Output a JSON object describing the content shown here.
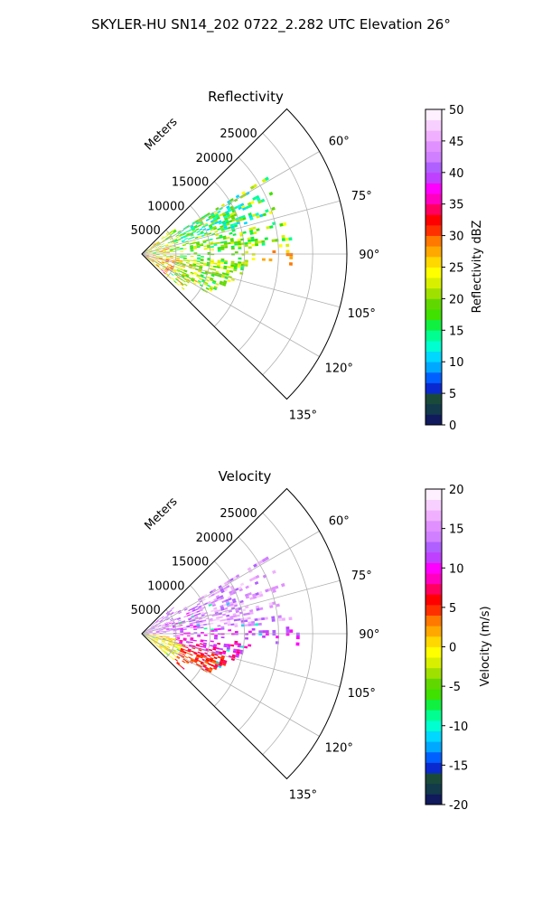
{
  "figure": {
    "suptitle": "SKYLER-HU  SN14_202  0722_2.282 UTC Elevation 26°"
  },
  "chart_data": [
    {
      "type": "heatmap",
      "projection": "polar-sector",
      "title": "Reflectivity",
      "range_label": "Meters",
      "range_ticks": [
        5000,
        10000,
        15000,
        20000,
        25000
      ],
      "range_max": 30000,
      "azimuth_range_deg": [
        45,
        135
      ],
      "azimuth_ticks": [
        "60°",
        "75°",
        "90°",
        "105°",
        "120°",
        "135°"
      ],
      "azimuth_tick_values": [
        60,
        75,
        90,
        105,
        120,
        135
      ],
      "colorbar": {
        "label": "Reflectivity dBZ",
        "min": 0,
        "max": 50,
        "ticks": [
          0,
          5,
          10,
          15,
          20,
          25,
          30,
          35,
          40,
          45,
          50
        ],
        "colors": [
          "#101a5c",
          "#123a4a",
          "#1a4a3a",
          "#0a2ad0",
          "#0060ff",
          "#00a8ff",
          "#00d8ff",
          "#00ffd0",
          "#00ff90",
          "#10f040",
          "#40e000",
          "#60d800",
          "#a0e000",
          "#d8f000",
          "#ffff00",
          "#ffd800",
          "#ffa800",
          "#ff7800",
          "#ff3000",
          "#ff0000",
          "#ff0060",
          "#ff00c0",
          "#ff00ff",
          "#c040ff",
          "#b060ff",
          "#d080ff",
          "#e090ff",
          "#f0b0ff",
          "#f8d0ff",
          "#fff0ff"
        ]
      },
      "data_extent_m": 23000,
      "dominant_values_dbz": "15-25"
    },
    {
      "type": "heatmap",
      "projection": "polar-sector",
      "title": "Velocity",
      "range_label": "Meters",
      "range_ticks": [
        5000,
        10000,
        15000,
        20000,
        25000
      ],
      "range_max": 30000,
      "azimuth_range_deg": [
        45,
        135
      ],
      "azimuth_ticks": [
        "60°",
        "75°",
        "90°",
        "105°",
        "120°",
        "135°"
      ],
      "azimuth_tick_values": [
        60,
        75,
        90,
        105,
        120,
        135
      ],
      "colorbar": {
        "label": "Velocity (m/s)",
        "min": -20,
        "max": 20,
        "ticks": [
          -20,
          -15,
          -10,
          -5,
          0,
          5,
          10,
          15,
          20
        ],
        "colors": [
          "#101a5c",
          "#123a4a",
          "#1a4a3a",
          "#0a2ad0",
          "#0060ff",
          "#00a8ff",
          "#00d8ff",
          "#00ffd0",
          "#00ff90",
          "#10f040",
          "#40e000",
          "#60d800",
          "#a0e000",
          "#d8f000",
          "#ffff00",
          "#ffd800",
          "#ffa800",
          "#ff7800",
          "#ff3000",
          "#ff0000",
          "#ff0060",
          "#ff00c0",
          "#ff00ff",
          "#c040ff",
          "#b060ff",
          "#d080ff",
          "#e090ff",
          "#f0b0ff",
          "#f8d0ff",
          "#fff0ff"
        ]
      },
      "data_extent_m": 23000,
      "dominant_values_ms": "5-15"
    }
  ]
}
